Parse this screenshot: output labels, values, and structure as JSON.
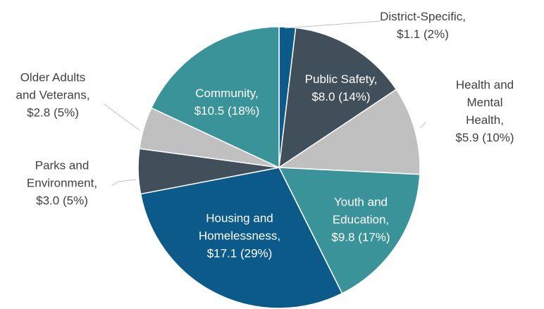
{
  "chart_data": {
    "type": "pie",
    "categories": [
      "District-Specific,",
      "Public Safety,",
      "Health and\nMental Health,",
      "Youth and\nEducation,",
      "Housing and\nHomelessness,",
      "Parks and\nEnvironment,",
      "Older Adults\nand Veterans,",
      "Community,"
    ],
    "values": [
      1.1,
      8.0,
      5.9,
      9.8,
      17.1,
      3.0,
      2.8,
      10.5
    ],
    "value_labels": [
      "$1.1 (2%)",
      "$8.0 (14%)",
      "$5.9  (10%)",
      "$9.8  (17%)",
      "$17.1 (29%)",
      "$3.0  (5%)",
      "$2.8 (5%)",
      "$10.5 (18%)"
    ],
    "colors": [
      "#0b5a8a",
      "#404f5a",
      "#c0c0c0",
      "#3a9399",
      "#0b5a8a",
      "#404f5a",
      "#c0c0c0",
      "#3a9399"
    ]
  }
}
